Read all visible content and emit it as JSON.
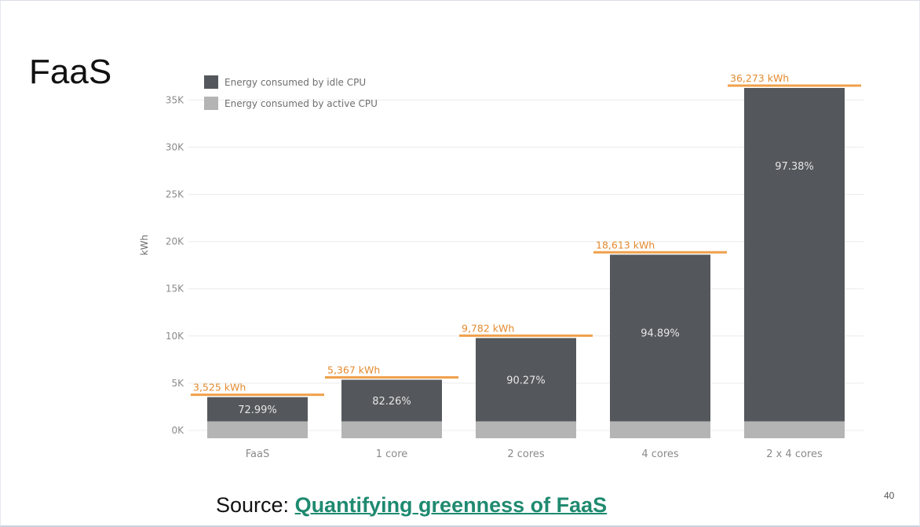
{
  "slide": {
    "title": "FaaS",
    "source_prefix": "Source: ",
    "source_link": "Quantifying greenness of FaaS",
    "page_number": "40"
  },
  "colors": {
    "idle": "#54585c",
    "active": "#b4b4b4",
    "total_line": "#f0a04b",
    "total_text": "#e38a2e",
    "grid": "#ececec",
    "link": "#1f8a70"
  },
  "chart_data": {
    "type": "bar",
    "stacked": true,
    "ylabel": "kWh",
    "ylim": [
      0,
      36273
    ],
    "yticks": [
      0,
      5000,
      10000,
      15000,
      20000,
      25000,
      30000,
      35000
    ],
    "ytick_labels": [
      "0K",
      "5K",
      "10K",
      "15K",
      "20K",
      "25K",
      "30K",
      "35K"
    ],
    "grid": true,
    "legend_position": "top-left",
    "categories": [
      "FaaS",
      "1 core",
      "2 cores",
      "4 cores",
      "2 x 4 cores"
    ],
    "series": [
      {
        "name": "Energy consumed by idle CPU",
        "values": [
          2573,
          4415,
          8830,
          17662,
          35324
        ]
      },
      {
        "name": "Energy consumed by active CPU",
        "values": [
          952,
          952,
          952,
          951,
          949
        ]
      }
    ],
    "totals": [
      3525,
      5367,
      9782,
      18613,
      36273
    ],
    "total_labels": [
      "3,525 kWh",
      "5,367 kWh",
      "9,782 kWh",
      "18,613 kWh",
      "36,273 kWh"
    ],
    "idle_percent_labels": [
      "72.99%",
      "82.26%",
      "90.27%",
      "94.89%",
      "97.38%"
    ]
  }
}
